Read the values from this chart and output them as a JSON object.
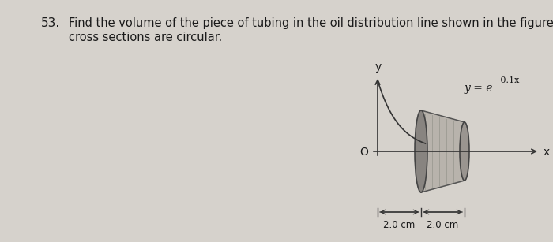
{
  "problem_number": "53.",
  "problem_text_line1": "Find the volume of the piece of tubing in the oil distribution line shown in the figure. All",
  "problem_text_line2": "cross sections are circular.",
  "bg_color": "#d6d2cc",
  "text_color": "#1a1a1a",
  "equation_text": "y = e",
  "equation_exp": "-0.1x",
  "origin_label": "O",
  "x_label": "x",
  "y_label": "y",
  "dim1_label": "2.0 cm",
  "dim2_label": "2.0 cm",
  "fig_width": 7.0,
  "fig_height": 3.07
}
